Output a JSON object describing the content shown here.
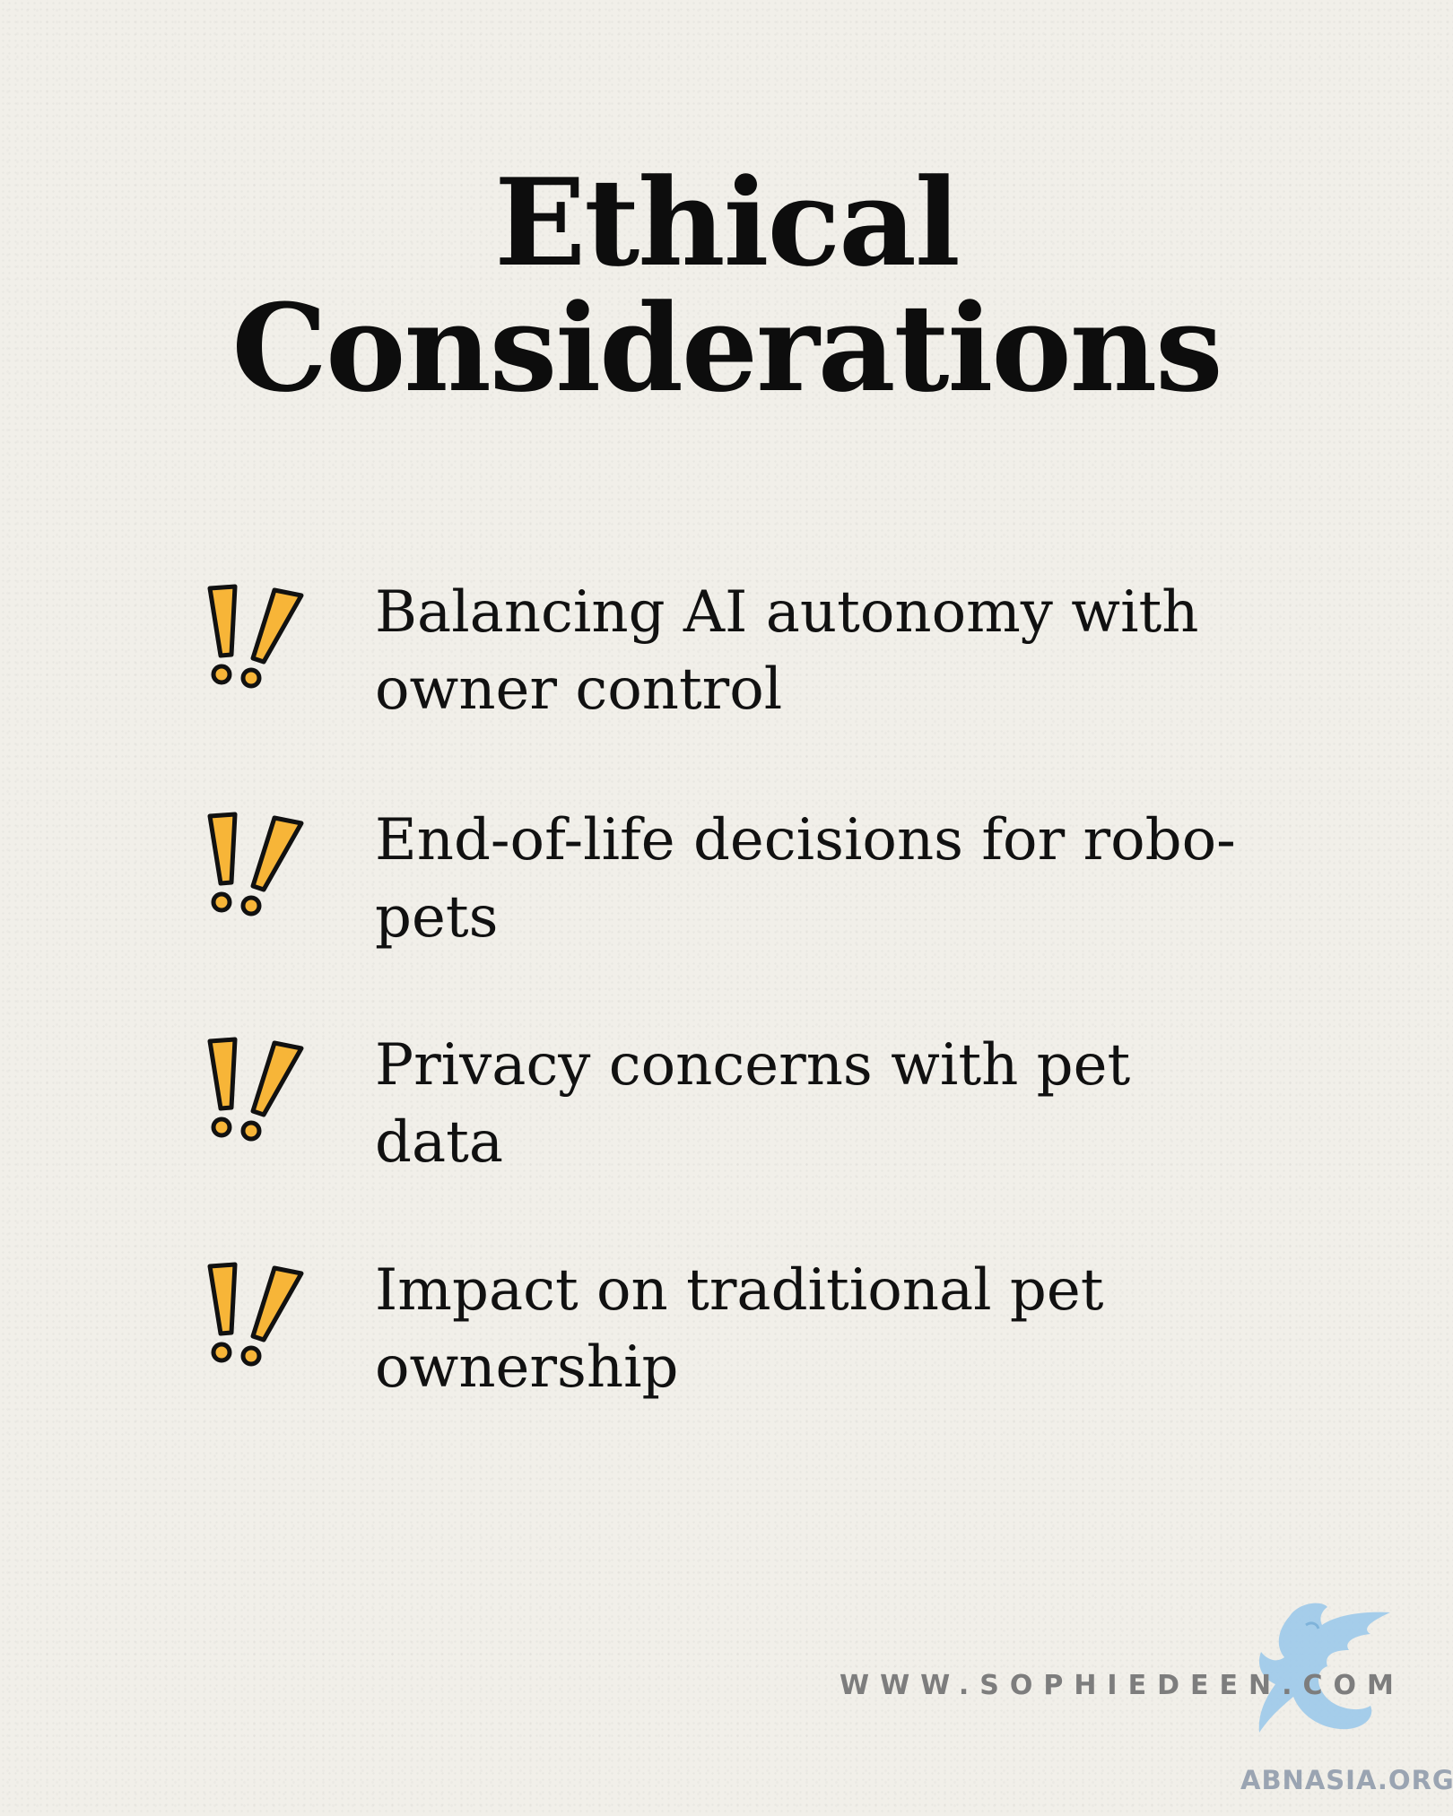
{
  "title": {
    "line1": "Ethical",
    "line2": "Considerations"
  },
  "items": [
    {
      "text": "Balancing AI autonomy with owner control",
      "icon": "double-exclamation-icon"
    },
    {
      "text": "End-of-life decisions for robo-pets",
      "icon": "double-exclamation-icon"
    },
    {
      "text": "Privacy concerns with pet data",
      "icon": "double-exclamation-icon"
    },
    {
      "text": "Impact on traditional pet ownership",
      "icon": "double-exclamation-icon"
    }
  ],
  "website": "WWW.SOPHIEDEEN.COM",
  "watermark": {
    "text": "ABNASIA.ORG",
    "icon": "griffin-logo-icon"
  },
  "colors": {
    "background": "#f1efe9",
    "text": "#0d0d0d",
    "accent": "#f7b538",
    "watermark": "#9cc9ea"
  }
}
